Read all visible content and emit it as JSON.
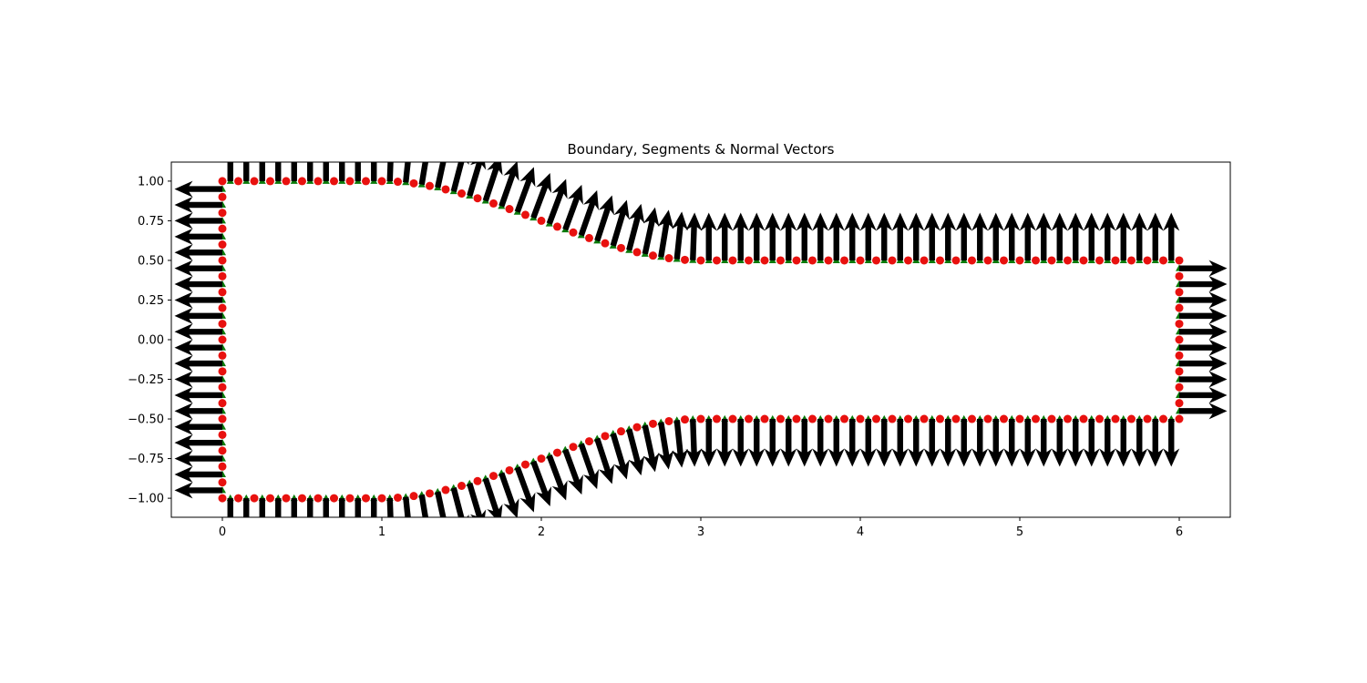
{
  "chart_data": {
    "type": "scatter",
    "title": "Boundary, Segments & Normal Vectors",
    "xlabel": "",
    "ylabel": "",
    "xlim": [
      -0.32,
      6.32
    ],
    "ylim": [
      -1.12,
      1.12
    ],
    "x_ticks": [
      0,
      1,
      2,
      3,
      4,
      5,
      6
    ],
    "x_tick_labels": [
      "0",
      "1",
      "2",
      "3",
      "4",
      "5",
      "6"
    ],
    "y_ticks": [
      1.0,
      0.75,
      0.5,
      0.25,
      0.0,
      -0.25,
      -0.5,
      -0.75,
      -1.0
    ],
    "y_tick_labels": [
      "1.00",
      "0.75",
      "0.50",
      "0.25",
      "0.00",
      "−0.25",
      "−0.50",
      "−0.75",
      "−1.00"
    ],
    "grid": false,
    "legend": "none",
    "boundary": {
      "inlet_x": 0,
      "outlet_x": 6,
      "top_left_y": 1.0,
      "top_right_y": 0.5,
      "bottom_left_y": -1.0,
      "bottom_right_y": -0.5,
      "straight_end_x": 1,
      "taper_end_x": 3,
      "node_spacing": 0.1,
      "normal_length": 0.3
    },
    "series": [
      {
        "type": "scatter",
        "marker": "circle",
        "color": "#e8110f"
      },
      {
        "type": "scatter",
        "marker": "triangle",
        "color": "#0a7a0a"
      },
      {
        "type": "quiver",
        "color": "#000000"
      }
    ]
  }
}
